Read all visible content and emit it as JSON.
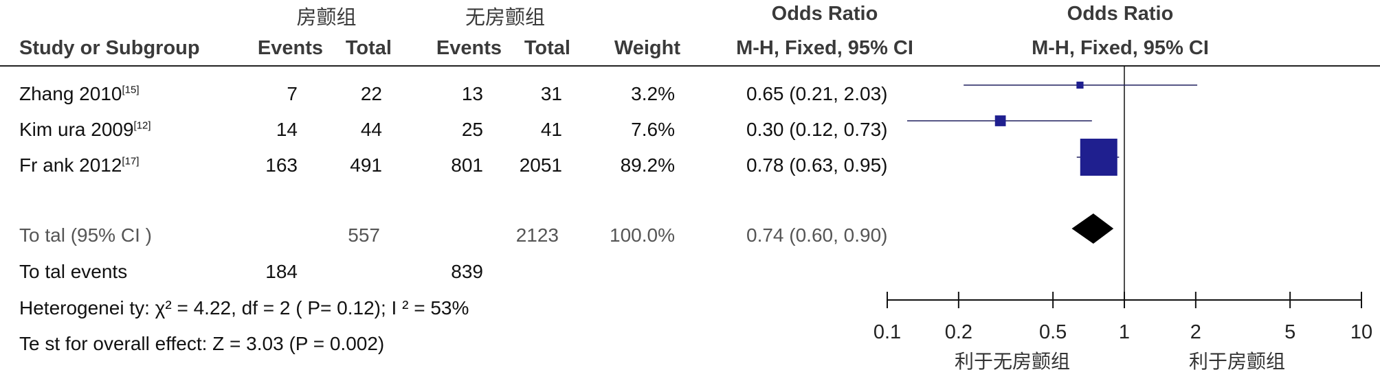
{
  "header": {
    "group1": "房颤组",
    "group2": "无房颤组",
    "or_title": "Odds Ratio",
    "or_plot_title": "Odds Ratio",
    "study_col": "Study or Subgroup",
    "events1": "Events",
    "total1": "Total",
    "events2": "Events",
    "total2": "Total",
    "weight": "Weight",
    "method": "M-H, Fixed, 95% CI",
    "method_plot": "M-H, Fixed, 95% CI"
  },
  "studies": [
    {
      "name": "Zhang 2010",
      "ref": "[15]",
      "events1": "7",
      "total1": "22",
      "events2": "13",
      "total2": "31",
      "weight": "3.2%",
      "ci_text": "0.65 (0.21, 2.03)"
    },
    {
      "name": "Kim ura 2009",
      "ref": "[12]",
      "events1": "14",
      "total1": "44",
      "events2": "25",
      "total2": "41",
      "weight": "7.6%",
      "ci_text": "0.30 (0.12, 0.73)"
    },
    {
      "name": "Fr ank 2012",
      "ref": "[17]",
      "events1": "163",
      "total1": "491",
      "events2": "801",
      "total2": "2051",
      "weight": "89.2%",
      "ci_text": "0.78 (0.63, 0.95)"
    }
  ],
  "total": {
    "label": "To tal (95% CI )",
    "total1": "557",
    "total2": "2123",
    "weight": "100.0%",
    "ci_text": "0.74 (0.60, 0.90)"
  },
  "total_events": {
    "label": "To tal events",
    "events1": "184",
    "events2": "839"
  },
  "heterogeneity": "Heterogenei ty:  χ² = 4.22, df = 2 (  P= 0.12); I ² = 53%",
  "overall_effect": "Te st for overall effect: Z = 3.03 (P = 0.002)",
  "axis": {
    "favours_left": "利于无房颤组",
    "favours_right": "利于房颤组"
  },
  "chart_data": {
    "type": "forest",
    "x_scale": "log",
    "xlim": [
      0.1,
      10
    ],
    "ticks": [
      0.1,
      0.2,
      0.5,
      1,
      2,
      5,
      10
    ],
    "tick_labels": [
      "0.1",
      "0.2",
      "0.5",
      "1",
      "2",
      "5",
      "10"
    ],
    "null_line": 1,
    "studies": [
      {
        "name": "Zhang 2010",
        "or": 0.65,
        "lower": 0.21,
        "upper": 2.03,
        "weight": 3.2
      },
      {
        "name": "Kim ura 2009",
        "or": 0.3,
        "lower": 0.12,
        "upper": 0.73,
        "weight": 7.6
      },
      {
        "name": "Fr ank 2012",
        "or": 0.78,
        "lower": 0.63,
        "upper": 0.95,
        "weight": 89.2
      }
    ],
    "pooled": {
      "or": 0.74,
      "lower": 0.6,
      "upper": 0.9
    },
    "colors": {
      "square": "#1f1f8f",
      "line": "#1f1f5f",
      "diamond": "#000000"
    }
  }
}
